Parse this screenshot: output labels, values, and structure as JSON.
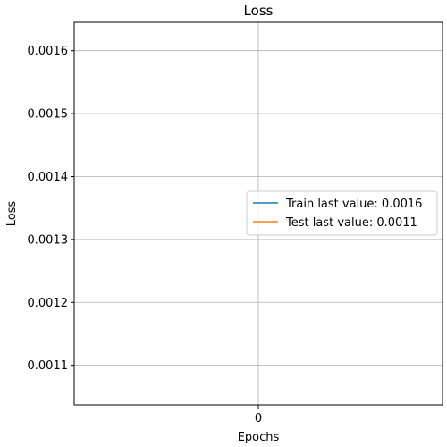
{
  "chart_data": {
    "type": "line",
    "title": "Loss",
    "xlabel": "Epochs",
    "ylabel": "Loss",
    "x_ticks": [
      "0"
    ],
    "y_ticks": [
      0.0011,
      0.0012,
      0.0013,
      0.0014,
      0.0015,
      0.0016
    ],
    "y_tick_labels": [
      "0.0011",
      "0.0012",
      "0.0013",
      "0.0014",
      "0.0015",
      "0.0016"
    ],
    "xlim": [
      -0.055,
      0.055
    ],
    "ylim": [
      0.001037,
      0.001645
    ],
    "grid": true,
    "legend_position": "center right",
    "series": [
      {
        "name": "Train last value: 0.0016",
        "x": [
          0
        ],
        "y": [
          0.0016
        ],
        "color": "#1f77b4"
      },
      {
        "name": "Test last value: 0.0011",
        "x": [
          0
        ],
        "y": [
          0.0011
        ],
        "color": "#ff7f0e"
      }
    ]
  }
}
